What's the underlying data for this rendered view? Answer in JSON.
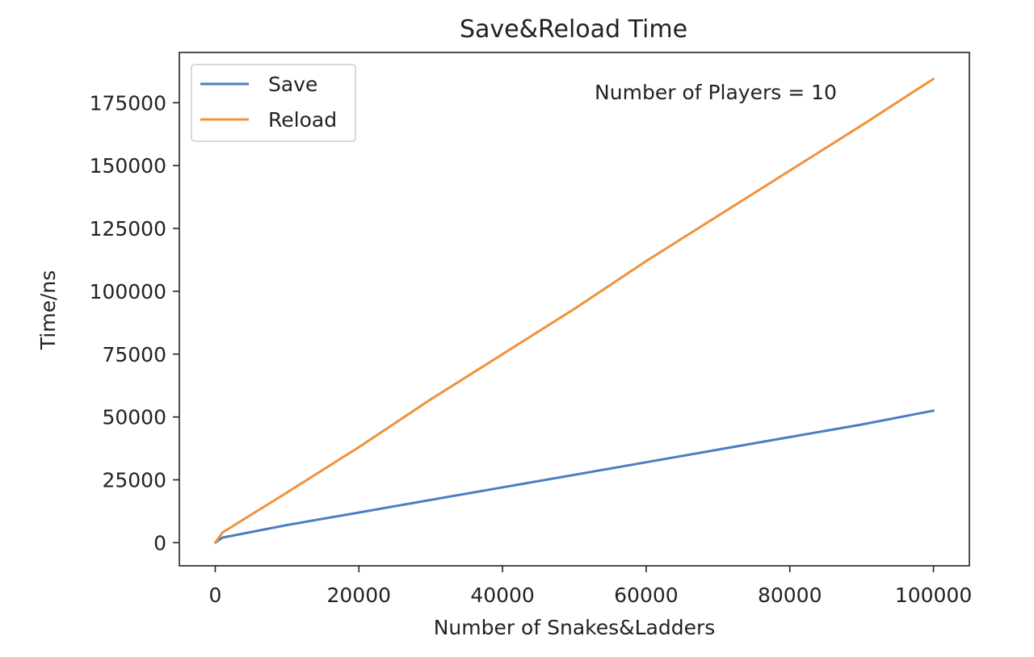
{
  "chart_data": {
    "type": "line",
    "title": "Save&Reload Time",
    "xlabel": "Number of Snakes&Ladders",
    "ylabel": "Time/ns",
    "xlim": [
      -5000,
      105000
    ],
    "ylim": [
      -9200,
      195000
    ],
    "xticks": [
      0,
      20000,
      40000,
      60000,
      80000,
      100000
    ],
    "yticks": [
      0,
      25000,
      50000,
      75000,
      100000,
      125000,
      150000,
      175000
    ],
    "grid": false,
    "legend_position": "top-left",
    "annotation": "Number of Players = 10",
    "series": [
      {
        "name": "Save",
        "color": "#4a7fbf",
        "x": [
          0,
          1000,
          10000,
          20000,
          30000,
          40000,
          50000,
          60000,
          70000,
          80000,
          90000,
          100000
        ],
        "y": [
          0,
          2000,
          7000,
          12000,
          17000,
          22000,
          27000,
          32000,
          37000,
          42000,
          47000,
          52500
        ]
      },
      {
        "name": "Reload",
        "color": "#f0923c",
        "x": [
          0,
          1000,
          10000,
          20000,
          30000,
          40000,
          50000,
          60000,
          70000,
          80000,
          90000,
          100000
        ],
        "y": [
          0,
          4000,
          20000,
          38000,
          57000,
          75000,
          93000,
          112000,
          130000,
          148000,
          166000,
          184500
        ]
      }
    ]
  }
}
